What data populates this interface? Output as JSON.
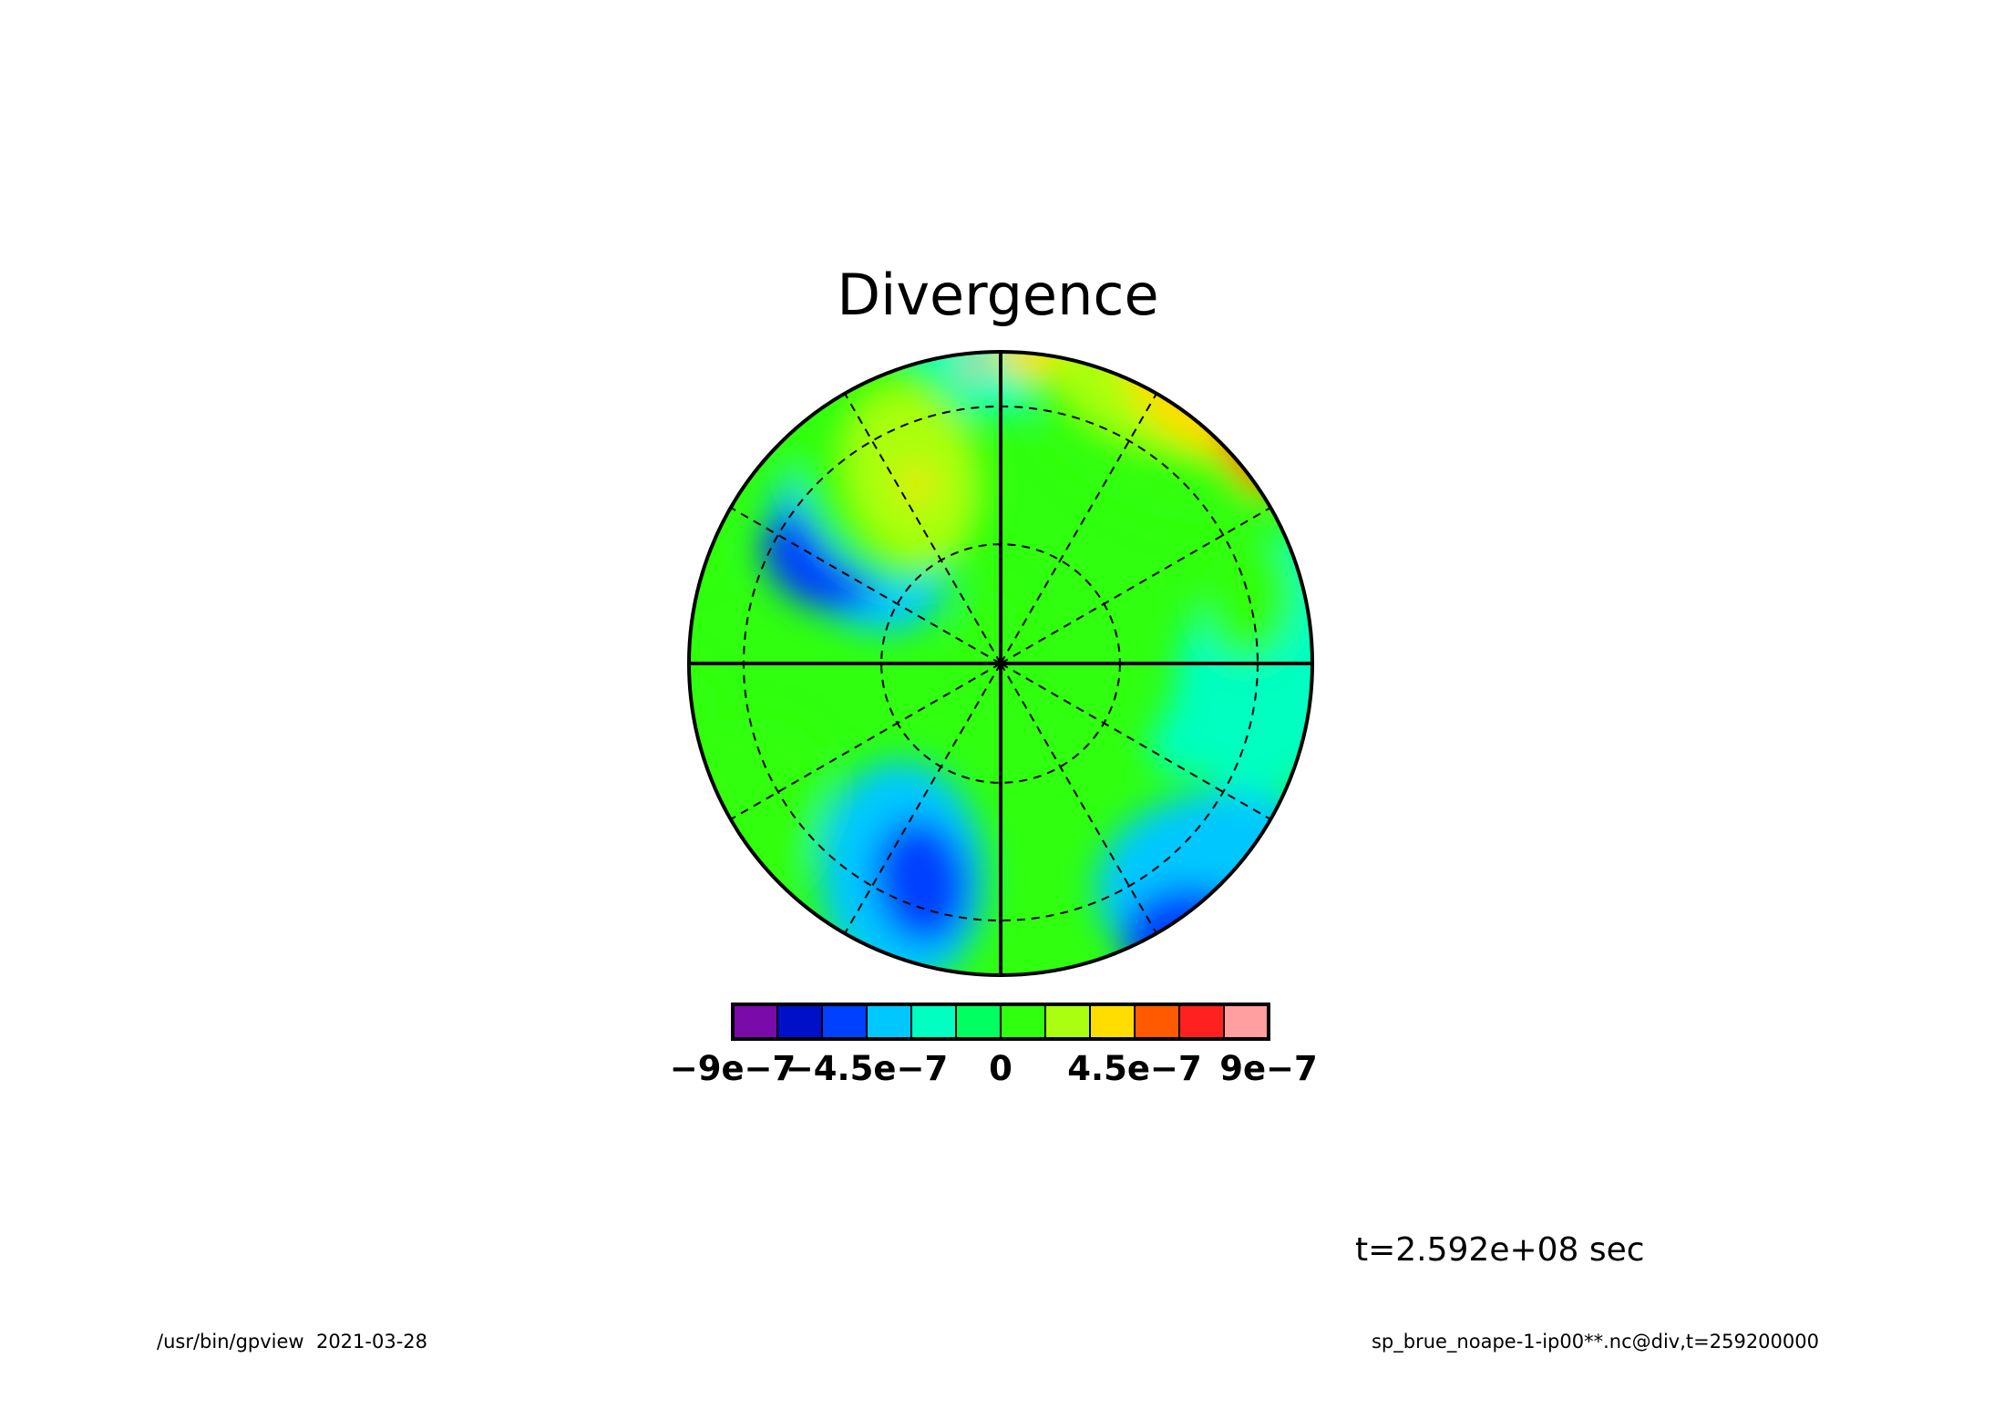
{
  "chart_data": {
    "type": "heatmap",
    "projection": "polar-stereographic",
    "title": "Divergence",
    "time_label": "t=2.592e+08 sec",
    "footer_left": "/usr/bin/gpview  2021-03-28",
    "footer_right": "sp_brue_noape-1-ip00**.nc@div,t=259200000",
    "colorbar": {
      "levels": [
        -9e-07,
        -7.5e-07,
        -6e-07,
        -4.5e-07,
        -3e-07,
        -1.5e-07,
        0,
        1.5e-07,
        3e-07,
        4.5e-07,
        6e-07,
        7.5e-07,
        9e-07
      ],
      "colors": [
        "#7a0aaa",
        "#0010c8",
        "#0040ff",
        "#00c8ff",
        "#00ffc0",
        "#00ff60",
        "#30ff10",
        "#aaff10",
        "#ffdd00",
        "#ff5a00",
        "#ff2020",
        "#ff9f9f"
      ],
      "tick_labels": [
        {
          "value": -9e-07,
          "text": "−9e−7"
        },
        {
          "value": -4.5e-07,
          "text": "−4.5e−7"
        },
        {
          "value": 0,
          "text": "0"
        },
        {
          "value": 4.5e-07,
          "text": "4.5e−7"
        },
        {
          "value": 9e-07,
          "text": "9e−7"
        }
      ]
    },
    "field_blobs": [
      {
        "value": -1.5e-07,
        "lon": 0,
        "lat": 15,
        "size": 1.0
      },
      {
        "value": -3e-07,
        "lon": 205,
        "lat": 35,
        "size": 0.9
      },
      {
        "value": -3e-07,
        "lon": 310,
        "lat": 45,
        "size": 0.8
      },
      {
        "value": -3e-07,
        "lon": 135,
        "lat": 20,
        "size": 1.0
      },
      {
        "value": -4.5e-07,
        "lon": 145,
        "lat": 15,
        "size": 0.6
      },
      {
        "value": -1.5e-07,
        "lon": 90,
        "lat": 25,
        "size": 1.1
      },
      {
        "value": -4.5e-07,
        "lon": 200,
        "lat": 35,
        "size": 0.5
      },
      {
        "value": -4.5e-07,
        "lon": 300,
        "lat": 40,
        "size": 0.5
      },
      {
        "value": -7.5e-07,
        "lon": 140,
        "lat": 12,
        "size": 0.12
      },
      {
        "value": -7.5e-07,
        "lon": 137,
        "lat": 5,
        "size": 0.12
      },
      {
        "value": 1.5e-07,
        "lon": 330,
        "lat": 35,
        "size": 1.0
      },
      {
        "value": 3e-07,
        "lon": 335,
        "lat": 40,
        "size": 0.7
      },
      {
        "value": 1.5e-07,
        "lon": 30,
        "lat": 20,
        "size": 1.2
      },
      {
        "value": 3e-07,
        "lon": 25,
        "lat": 15,
        "size": 0.9
      },
      {
        "value": 4.5e-07,
        "lon": 35,
        "lat": 12,
        "size": 0.8
      },
      {
        "value": 6e-07,
        "lon": 30,
        "lat": 8,
        "size": 0.5
      },
      {
        "value": 6e-07,
        "lon": 50,
        "lat": 15,
        "size": 0.4
      },
      {
        "value": 4.5e-07,
        "lon": 5,
        "lat": 20,
        "size": 0.25
      },
      {
        "value": 6e-07,
        "lon": 355,
        "lat": 22,
        "size": 0.1
      },
      {
        "value": 4.5e-07,
        "lon": 335,
        "lat": 42,
        "size": 0.15
      },
      {
        "value": 1.5e-07,
        "lon": 240,
        "lat": 20,
        "size": 0.9
      },
      {
        "value": 1.5e-07,
        "lon": 260,
        "lat": 10,
        "size": 0.7
      },
      {
        "value": 3e-07,
        "lon": 245,
        "lat": 10,
        "size": 0.3
      },
      {
        "value": 1.5e-07,
        "lon": 75,
        "lat": 30,
        "size": 0.5
      },
      {
        "value": 1.5e-07,
        "lon": 290,
        "lat": 12,
        "size": 0.4
      },
      {
        "value": -1.5e-07,
        "lon": 110,
        "lat": 40,
        "size": 0.4
      },
      {
        "value": 1.5e-07,
        "lon": 345,
        "lat": 80,
        "size": 0.3
      }
    ],
    "grid": {
      "parallels_lat": [
        60,
        30
      ],
      "meridian_step_deg": 30,
      "boundary_lat": 20
    }
  }
}
